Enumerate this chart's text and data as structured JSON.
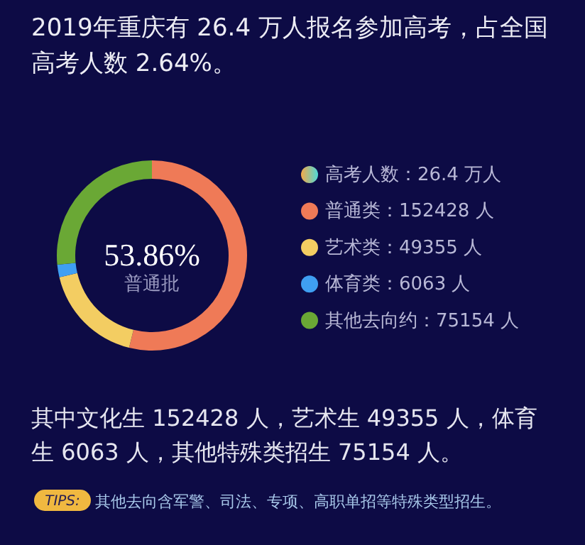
{
  "chart_data": {
    "type": "donut",
    "title": "2019年重庆有 26.4 万人报名参加高考，占全国高考人数 2.64%。",
    "legend_title": "高考人数：26.4 万人",
    "categories": [
      "普通类",
      "艺术类",
      "体育类",
      "其他去向约"
    ],
    "values": [
      152428,
      49355,
      6063,
      75154
    ],
    "value_labels": [
      "152428 人",
      "49355 人",
      "6063 人",
      "75154 人"
    ],
    "colors": [
      "#ef7a57",
      "#f3cd62",
      "#3f9ff2",
      "#6aa835"
    ],
    "legend": "right",
    "annotations": [
      "53.86%",
      "普通批",
      "其中文化生 152428 人，艺术生 49355 人，体育生 6063 人，其他特殊类招生 75154 人。",
      "TIPS:",
      "其他去向含军警、司法、专项、高职单招等特殊类型招生。"
    ]
  }
}
